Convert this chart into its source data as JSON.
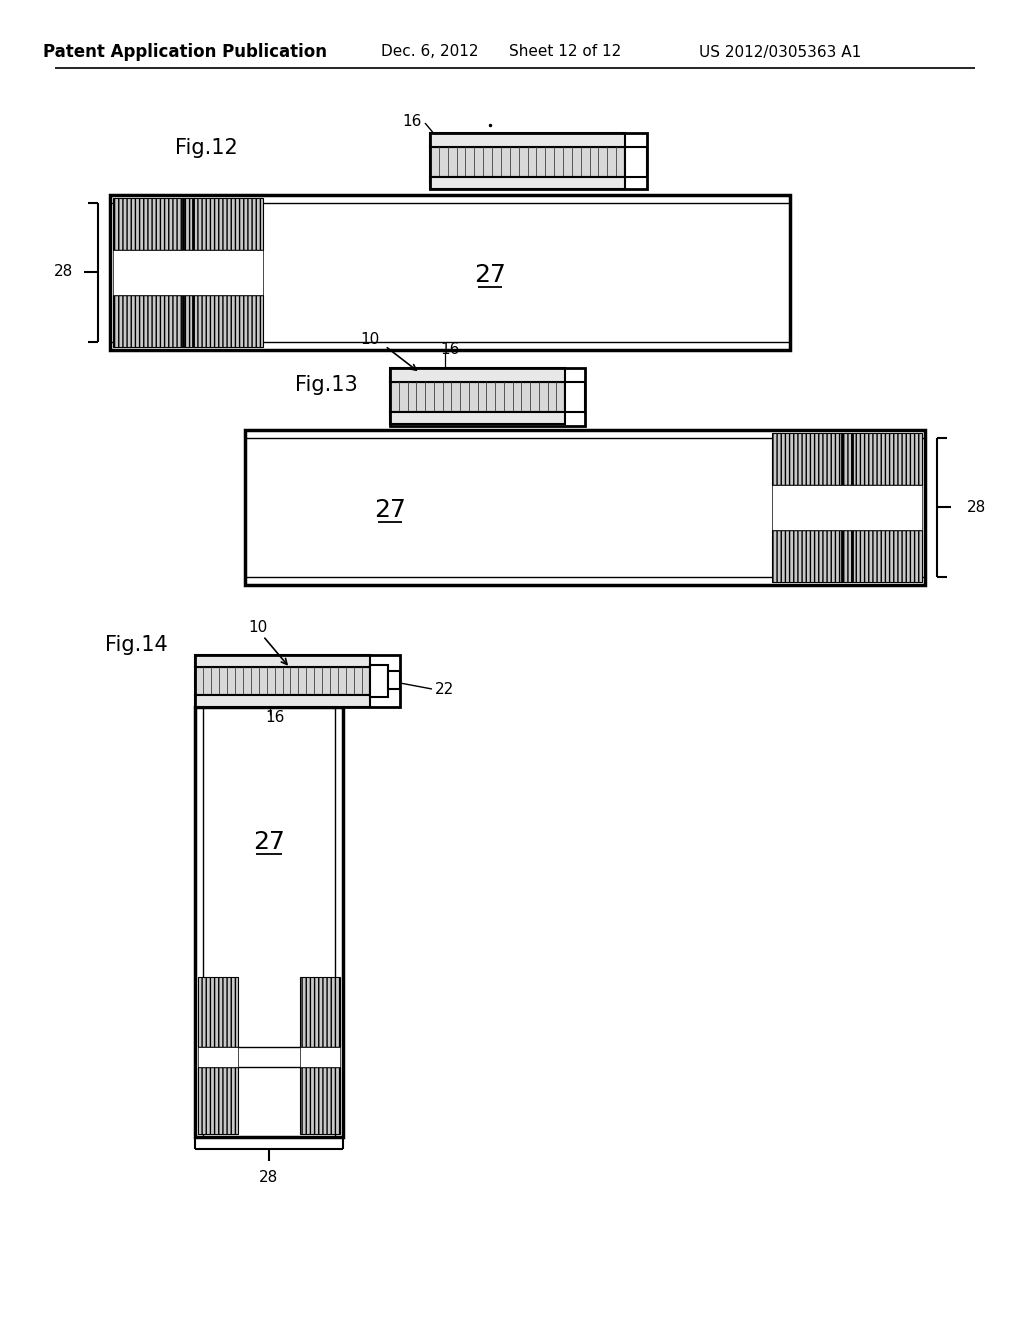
{
  "bg_color": "#ffffff",
  "header_text": "Patent Application Publication",
  "header_date": "Dec. 6, 2012",
  "header_sheet": "Sheet 12 of 12",
  "header_patent": "US 2012/0305363 A1"
}
